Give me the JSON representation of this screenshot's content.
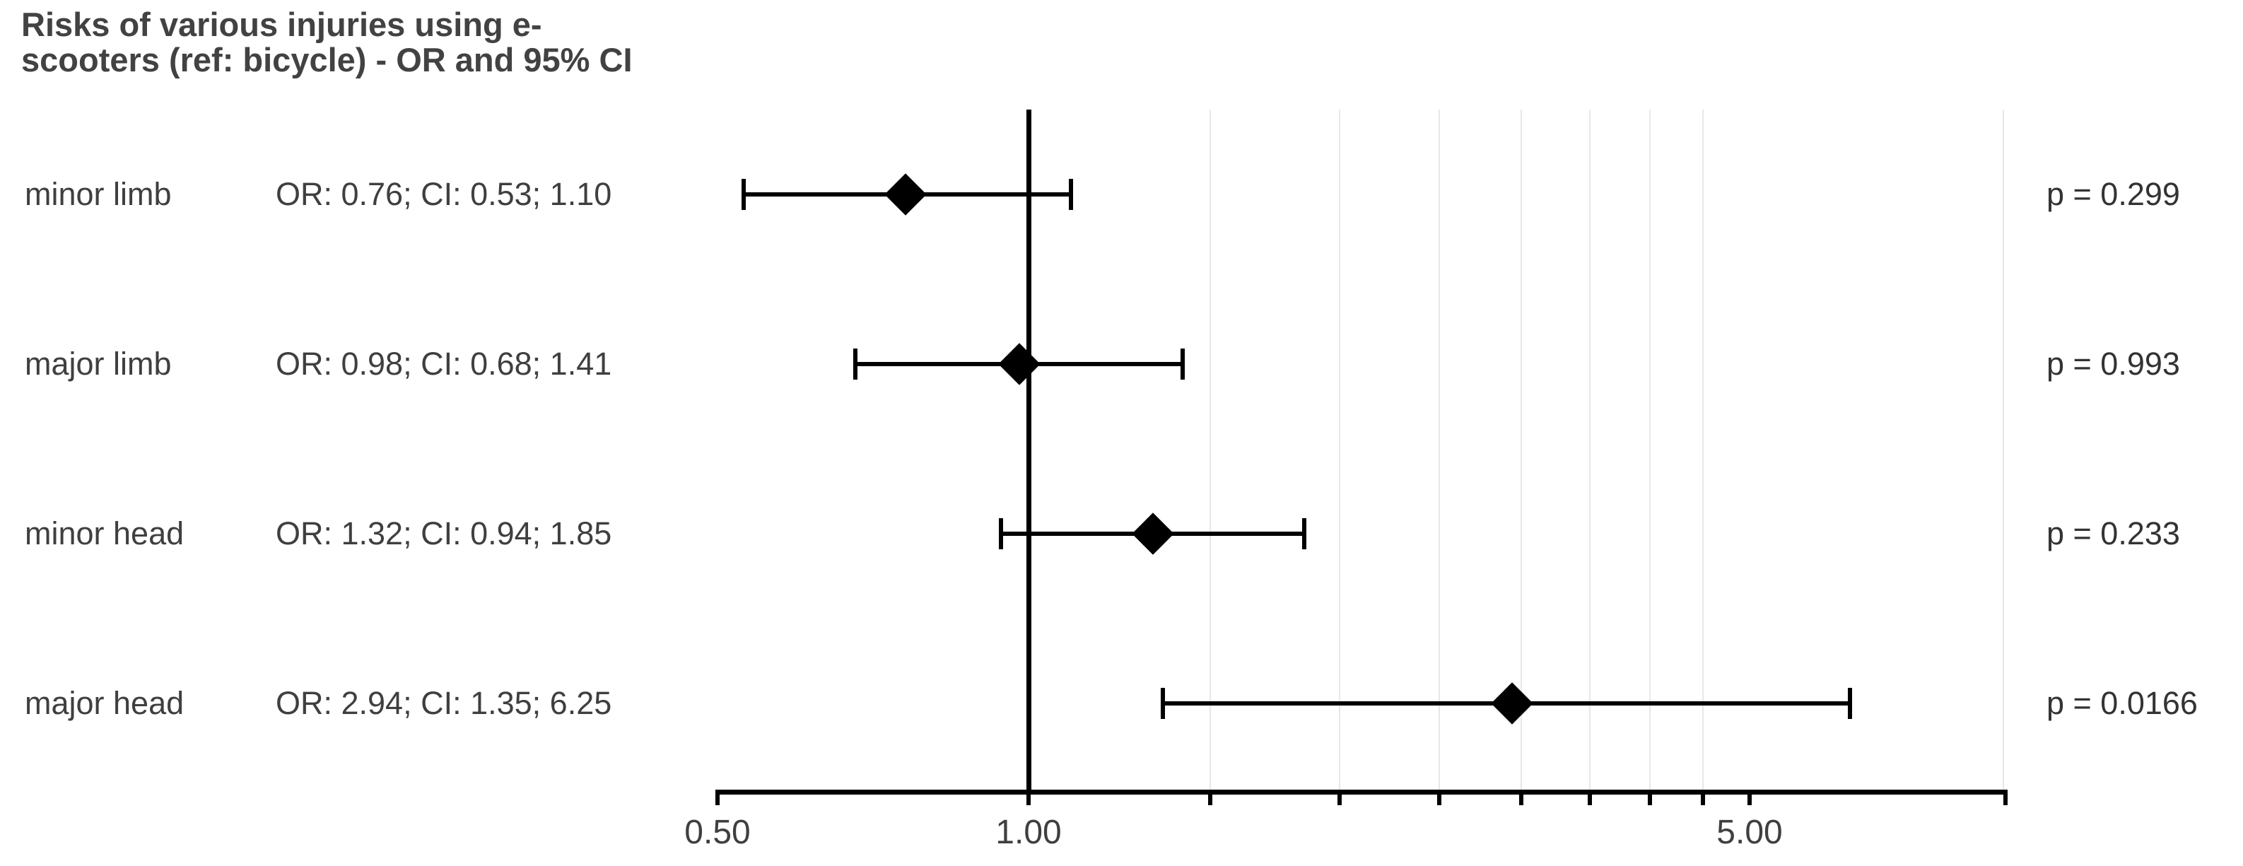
{
  "chart_data": {
    "type": "scatter",
    "subtype": "forest-plot-with-error-bars",
    "title": "Risks of various injuries using e-scooters (ref: bicycle) - OR and 95% CI",
    "title_lines": [
      "Risks of various injuries using e-",
      "scooters (ref: bicycle) - OR and 95% CI"
    ],
    "x_scale": "log10",
    "x_axis": {
      "range": [
        0.5,
        8.8
      ],
      "labeled_ticks": [
        {
          "value": 0.5,
          "label": "0.50"
        },
        {
          "value": 1.0,
          "label": "1.00"
        },
        {
          "value": 5.0,
          "label": "5.00"
        }
      ],
      "minor_ticks": [
        1.5,
        2,
        2.5,
        3,
        3.5,
        4,
        4.5
      ],
      "gridlines": [
        1.5,
        2,
        2.5,
        3,
        3.5,
        4,
        4.5,
        8.8
      ],
      "grid_on": true
    },
    "reference_line": 1.0,
    "rows": [
      {
        "label": "minor limb",
        "or": 0.76,
        "ci_low": 0.53,
        "ci_high": 1.1,
        "estimate_text": "OR: 0.76; CI: 0.53; 1.10",
        "p": 0.299,
        "p_text": "p = 0.299"
      },
      {
        "label": "major limb",
        "or": 0.98,
        "ci_low": 0.68,
        "ci_high": 1.41,
        "estimate_text": "OR: 0.98; CI: 0.68; 1.41",
        "p": 0.993,
        "p_text": "p = 0.993"
      },
      {
        "label": "minor head",
        "or": 1.32,
        "ci_low": 0.94,
        "ci_high": 1.85,
        "estimate_text": "OR: 1.32; CI: 0.94; 1.85",
        "p": 0.233,
        "p_text": "p = 0.233"
      },
      {
        "label": "major head",
        "or": 2.94,
        "ci_low": 1.35,
        "ci_high": 6.25,
        "estimate_text": "OR: 2.94; CI: 1.35; 6.25",
        "p": 0.0166,
        "p_text": "p = 0.0166"
      }
    ],
    "colors": {
      "marker": "#000000",
      "reference_line": "#000000",
      "axis": "#000000",
      "gridline": "#e7e7e7",
      "text": "#3f3f3f",
      "title_text": "#424242",
      "background": "#ffffff"
    },
    "legend": "none"
  }
}
